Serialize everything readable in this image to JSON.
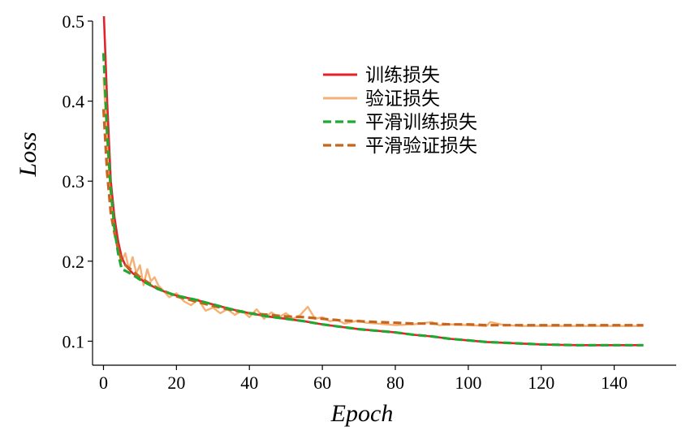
{
  "chart_data": {
    "type": "line",
    "xlabel": "Epoch",
    "ylabel": "Loss",
    "xlim": [
      -3,
      157
    ],
    "ylim": [
      0.07,
      0.5
    ],
    "xticks": [
      0,
      20,
      40,
      60,
      80,
      100,
      120,
      140
    ],
    "yticks": [
      0.1,
      0.2,
      0.3,
      0.4,
      0.5
    ],
    "ytick_labels": [
      "0.1",
      "0.2",
      "0.3",
      "0.4",
      "0.5"
    ],
    "grid": false,
    "legend_position": "upper-center",
    "series": [
      {
        "name": "训练损失",
        "color": "#e3232b",
        "dash": "solid",
        "x": [
          0,
          1,
          2,
          3,
          4,
          5,
          6,
          8,
          10,
          12,
          15,
          18,
          20,
          25,
          30,
          35,
          40,
          45,
          50,
          55,
          60,
          65,
          70,
          75,
          80,
          85,
          90,
          95,
          100,
          105,
          110,
          115,
          120,
          125,
          130,
          135,
          140,
          145,
          148
        ],
        "y": [
          0.52,
          0.4,
          0.3,
          0.255,
          0.225,
          0.205,
          0.195,
          0.185,
          0.178,
          0.172,
          0.165,
          0.16,
          0.157,
          0.152,
          0.146,
          0.14,
          0.135,
          0.131,
          0.128,
          0.125,
          0.121,
          0.118,
          0.115,
          0.113,
          0.111,
          0.108,
          0.106,
          0.103,
          0.101,
          0.099,
          0.098,
          0.097,
          0.096,
          0.0955,
          0.095,
          0.095,
          0.095,
          0.095,
          0.095
        ]
      },
      {
        "name": "验证损失",
        "color": "#f5b175",
        "dash": "solid",
        "x": [
          0,
          1,
          2,
          3,
          4,
          5,
          6,
          7,
          8,
          9,
          10,
          11,
          12,
          13,
          14,
          15,
          16,
          18,
          20,
          22,
          24,
          26,
          28,
          30,
          32,
          34,
          36,
          38,
          40,
          42,
          44,
          46,
          48,
          50,
          52,
          54,
          56,
          58,
          60,
          62,
          64,
          66,
          68,
          70,
          72,
          75,
          80,
          85,
          90,
          92,
          95,
          100,
          105,
          106,
          110,
          115,
          120,
          125,
          130,
          135,
          140,
          145,
          148
        ],
        "y": [
          0.43,
          0.35,
          0.28,
          0.25,
          0.22,
          0.2,
          0.21,
          0.19,
          0.205,
          0.185,
          0.195,
          0.17,
          0.19,
          0.175,
          0.18,
          0.17,
          0.165,
          0.155,
          0.16,
          0.15,
          0.145,
          0.152,
          0.138,
          0.142,
          0.135,
          0.14,
          0.133,
          0.138,
          0.13,
          0.14,
          0.128,
          0.136,
          0.13,
          0.135,
          0.128,
          0.133,
          0.143,
          0.128,
          0.13,
          0.125,
          0.127,
          0.122,
          0.124,
          0.126,
          0.123,
          0.122,
          0.12,
          0.121,
          0.124,
          0.12,
          0.121,
          0.12,
          0.119,
          0.124,
          0.12,
          0.119,
          0.119,
          0.119,
          0.119,
          0.119,
          0.119,
          0.119,
          0.119
        ]
      },
      {
        "name": "平滑训练损失",
        "color": "#22a730",
        "dash": "dashed",
        "x": [
          0,
          1,
          2,
          3,
          4,
          5,
          6,
          8,
          10,
          12,
          15,
          18,
          20,
          25,
          30,
          35,
          40,
          45,
          50,
          55,
          60,
          65,
          70,
          75,
          80,
          85,
          90,
          95,
          100,
          105,
          110,
          115,
          120,
          125,
          130,
          135,
          140,
          145,
          148
        ],
        "y": [
          0.46,
          0.36,
          0.29,
          0.24,
          0.21,
          0.19,
          0.188,
          0.183,
          0.177,
          0.172,
          0.165,
          0.16,
          0.157,
          0.152,
          0.146,
          0.14,
          0.135,
          0.131,
          0.128,
          0.125,
          0.121,
          0.118,
          0.115,
          0.113,
          0.111,
          0.108,
          0.106,
          0.103,
          0.101,
          0.099,
          0.098,
          0.097,
          0.096,
          0.0955,
          0.095,
          0.095,
          0.095,
          0.095,
          0.095
        ]
      },
      {
        "name": "平滑验证损失",
        "color": "#c8641c",
        "dash": "dashed",
        "x": [
          0,
          1,
          2,
          3,
          4,
          5,
          6,
          8,
          10,
          12,
          15,
          18,
          20,
          25,
          30,
          35,
          40,
          45,
          50,
          55,
          60,
          65,
          70,
          75,
          80,
          85,
          90,
          95,
          100,
          105,
          110,
          115,
          120,
          125,
          130,
          135,
          140,
          145,
          148
        ],
        "y": [
          0.39,
          0.31,
          0.26,
          0.235,
          0.215,
          0.2,
          0.195,
          0.188,
          0.18,
          0.174,
          0.166,
          0.16,
          0.156,
          0.15,
          0.144,
          0.139,
          0.135,
          0.133,
          0.131,
          0.13,
          0.128,
          0.126,
          0.125,
          0.124,
          0.123,
          0.122,
          0.122,
          0.121,
          0.121,
          0.12,
          0.12,
          0.12,
          0.12,
          0.12,
          0.12,
          0.12,
          0.12,
          0.12,
          0.12
        ]
      }
    ]
  }
}
